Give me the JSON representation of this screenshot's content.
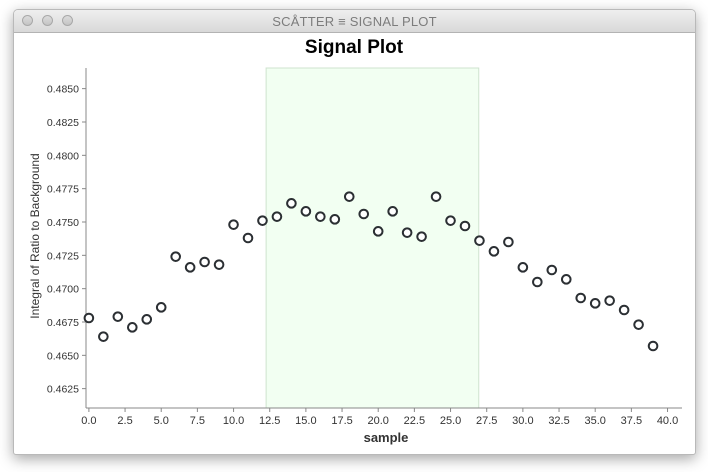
{
  "window": {
    "title": "SCÅTTER ≡ SIGNAL PLOT"
  },
  "chart_data": {
    "type": "scatter",
    "title": "Signal Plot",
    "xlabel": "sample",
    "ylabel": "Integral of Ratio to Background",
    "xlim": [
      -0.2,
      41.0
    ],
    "ylim": [
      0.46105,
      0.48655
    ],
    "x_ticks": [
      "0.0",
      "2.5",
      "5.0",
      "7.5",
      "10.0",
      "12.5",
      "15.0",
      "17.5",
      "20.0",
      "22.5",
      "25.0",
      "27.5",
      "30.0",
      "32.5",
      "35.0",
      "37.5",
      "40.0"
    ],
    "y_ticks": [
      "0.4625",
      "0.4650",
      "0.4675",
      "0.4700",
      "0.4725",
      "0.4750",
      "0.4775",
      "0.4800",
      "0.4825",
      "0.4850"
    ],
    "grid": false,
    "legend": "none",
    "highlight_region": {
      "x_start": 12.25,
      "x_end": 26.95,
      "color": "#f2fff2"
    },
    "marker": {
      "shape": "open-circle",
      "color": "#2b2f33"
    },
    "series": [
      {
        "x": [
          0,
          1,
          2,
          3,
          4,
          5,
          6,
          7,
          8,
          9,
          10,
          11,
          12,
          13,
          14,
          15,
          16,
          17,
          18,
          19,
          20,
          21,
          22,
          23,
          24,
          25,
          26,
          27,
          28,
          29,
          30,
          31,
          32,
          33,
          34,
          35,
          36,
          37,
          38,
          39
        ],
        "y": [
          0.4678,
          0.4664,
          0.4679,
          0.4671,
          0.4677,
          0.4686,
          0.4724,
          0.4716,
          0.472,
          0.4718,
          0.4748,
          0.4738,
          0.4751,
          0.4754,
          0.4764,
          0.4758,
          0.4754,
          0.4752,
          0.4769,
          0.4756,
          0.4743,
          0.4758,
          0.4742,
          0.4739,
          0.4769,
          0.4751,
          0.4747,
          0.4736,
          0.4728,
          0.4735,
          0.4716,
          0.4705,
          0.4714,
          0.4707,
          0.4693,
          0.4689,
          0.4691,
          0.4684,
          0.4673,
          0.4657
        ]
      }
    ]
  }
}
